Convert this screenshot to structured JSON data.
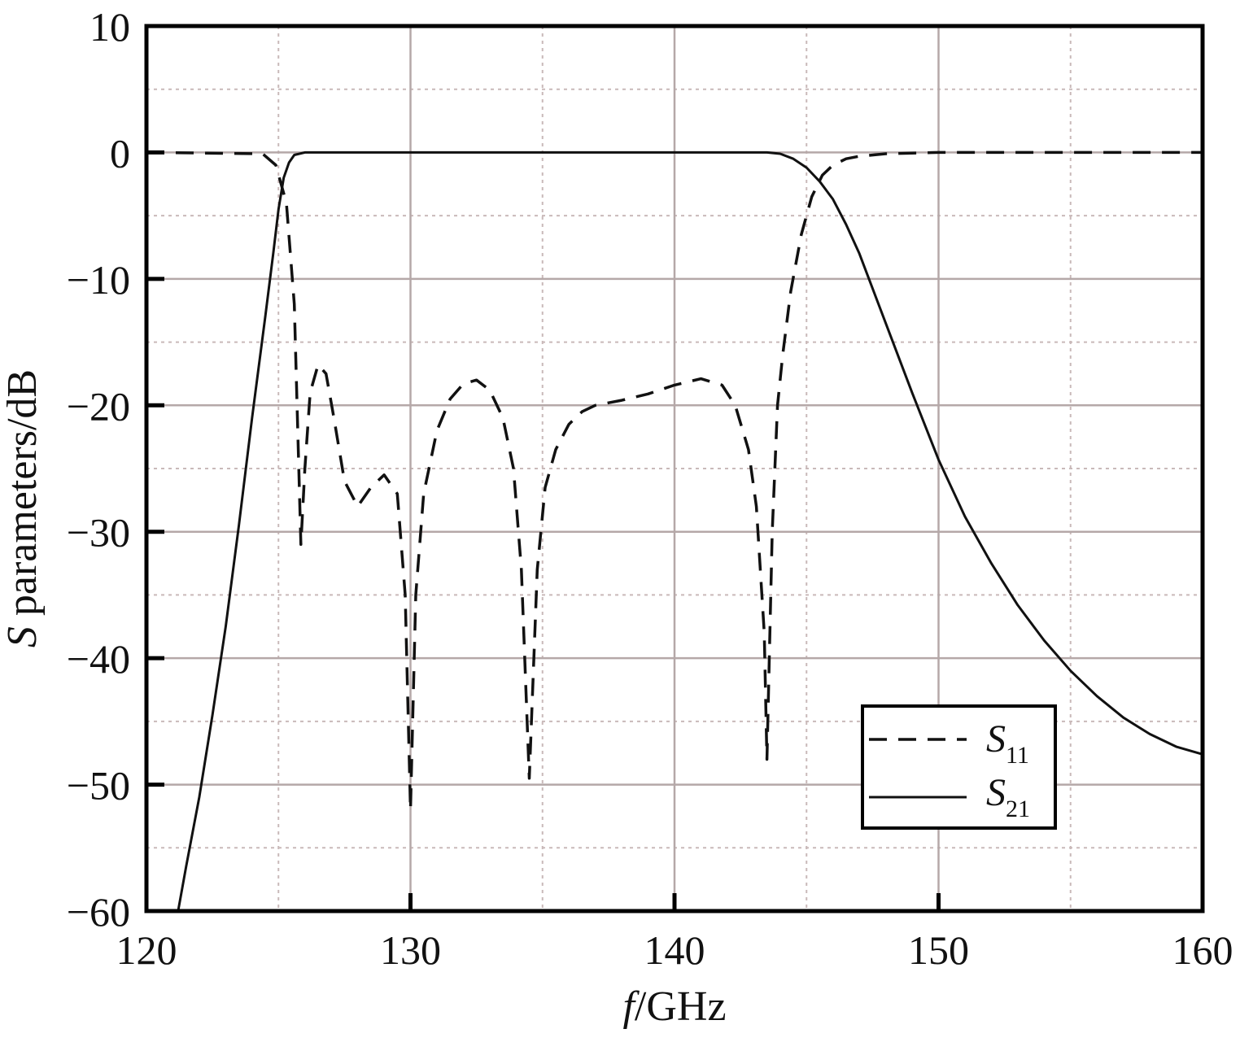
{
  "chart_data": {
    "type": "line",
    "xlabel_italic": "f",
    "xlabel_rest": "/GHz",
    "ylabel_italic": "S",
    "ylabel_rest": " parameters/dB",
    "xlim": [
      120,
      160
    ],
    "ylim": [
      -60,
      10
    ],
    "x_ticks": [
      120,
      130,
      140,
      150,
      160
    ],
    "y_ticks": [
      10,
      0,
      -10,
      -20,
      -30,
      -40,
      -50,
      -60
    ],
    "x_tick_labels": [
      "120",
      "130",
      "140",
      "150",
      "160"
    ],
    "y_tick_labels": [
      "10",
      "0",
      "−10",
      "−20",
      "−30",
      "−40",
      "−50",
      "−60"
    ],
    "grid": true,
    "legend_position": "bottom-right",
    "series": [
      {
        "name": "S",
        "subscript": "11",
        "style": "dashed",
        "color": "#111111",
        "x": [
          120,
          124.4,
          124.9,
          125.3,
          125.6,
          125.85,
          126.0,
          126.2,
          126.5,
          126.8,
          127.1,
          127.5,
          128.0,
          128.5,
          129.0,
          129.5,
          129.8,
          130.0,
          130.2,
          130.5,
          131.0,
          131.5,
          132.0,
          132.5,
          133.0,
          133.5,
          133.9,
          134.2,
          134.5,
          134.8,
          135.1,
          135.5,
          136.0,
          136.5,
          137.0,
          138.0,
          139.0,
          140.0,
          141.0,
          141.8,
          142.3,
          142.8,
          143.1,
          143.4,
          143.5,
          143.7,
          143.9,
          144.1,
          144.4,
          144.8,
          145.2,
          145.6,
          146.0,
          146.5,
          147.0,
          148.0,
          150.0,
          155.0,
          160.0
        ],
        "y": [
          0,
          -0.1,
          -1.0,
          -4.0,
          -12.0,
          -31.0,
          -25.0,
          -19.0,
          -16.8,
          -17.5,
          -21.0,
          -26.0,
          -28.0,
          -26.5,
          -25.5,
          -27.0,
          -35.0,
          -52.0,
          -35.0,
          -27.0,
          -22.0,
          -19.5,
          -18.3,
          -18.0,
          -18.8,
          -21.0,
          -25.0,
          -33.0,
          -49.5,
          -33.0,
          -26.5,
          -23.5,
          -21.5,
          -20.5,
          -20.0,
          -19.6,
          -19.1,
          -18.4,
          -17.9,
          -18.4,
          -20.0,
          -23.5,
          -28.0,
          -38.0,
          -48.0,
          -30.0,
          -20.0,
          -16.0,
          -11.0,
          -6.5,
          -3.5,
          -1.8,
          -1.0,
          -0.5,
          -0.3,
          -0.1,
          0,
          0,
          0
        ]
      },
      {
        "name": "S",
        "subscript": "21",
        "style": "solid",
        "color": "#111111",
        "x": [
          121.2,
          121.5,
          122.0,
          122.5,
          123.0,
          123.5,
          124.0,
          124.5,
          124.8,
          125.0,
          125.2,
          125.4,
          125.6,
          126.0,
          130.0,
          135.0,
          140.0,
          143.5,
          144.0,
          144.5,
          145.0,
          145.5,
          146.0,
          146.5,
          147.0,
          148.0,
          149.0,
          150.0,
          151.0,
          152.0,
          153.0,
          154.0,
          155.0,
          156.0,
          157.0,
          158.0,
          159.0,
          160.0
        ],
        "y": [
          -60,
          -56.5,
          -51,
          -44.5,
          -37.5,
          -29.5,
          -21,
          -13,
          -8,
          -4.5,
          -2,
          -0.8,
          -0.2,
          0,
          0,
          0,
          0,
          0,
          -0.1,
          -0.5,
          -1.2,
          -2.3,
          -3.7,
          -5.7,
          -8.0,
          -13.5,
          -19.0,
          -24.3,
          -28.8,
          -32.5,
          -35.8,
          -38.6,
          -41.0,
          -43.0,
          -44.7,
          -46.0,
          -47.0,
          -47.6
        ]
      }
    ]
  }
}
